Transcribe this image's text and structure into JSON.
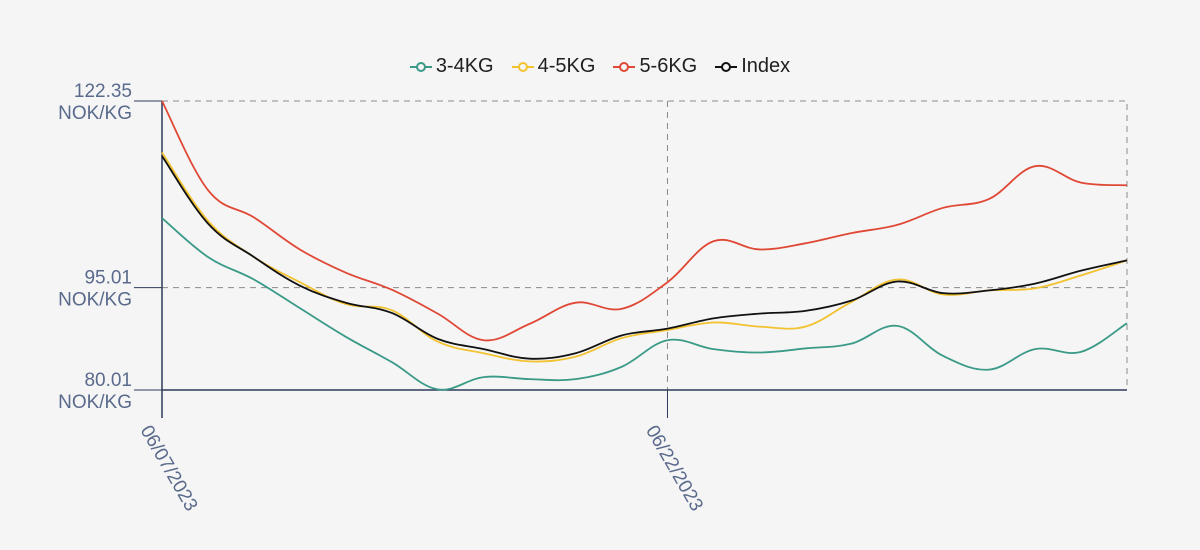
{
  "chart_data": {
    "type": "line",
    "title": "",
    "xlabel": "",
    "ylabel": "",
    "ylim": [
      80.01,
      122.35
    ],
    "y_ticks": [
      {
        "value": 122.35,
        "line1": "122.35",
        "line2": "NOK/KG"
      },
      {
        "value": 95.01,
        "line1": "95.01",
        "line2": "NOK/KG"
      },
      {
        "value": 80.01,
        "line1": "80.01",
        "line2": "NOK/KG"
      }
    ],
    "x_ticks": [
      {
        "index": 0,
        "label": "06/07/2023"
      },
      {
        "index": 11,
        "label": "06/22/2023"
      }
    ],
    "x_count": 22,
    "grid": true,
    "legend_position": "top-center",
    "series": [
      {
        "name": "3-4KG",
        "color": "#3a9a87",
        "values": [
          105.2,
          99.5,
          96.2,
          92.0,
          87.8,
          84.1,
          80.1,
          81.9,
          81.6,
          81.6,
          83.4,
          87.3,
          86.0,
          85.5,
          86.1,
          86.8,
          89.4,
          85.0,
          83.0,
          86.0,
          85.6,
          89.8
        ]
      },
      {
        "name": "4-5KG",
        "color": "#f2c230",
        "values": [
          114.8,
          104.8,
          99.5,
          95.8,
          92.6,
          91.7,
          87.1,
          85.4,
          84.2,
          84.9,
          87.6,
          88.8,
          89.9,
          89.3,
          89.3,
          92.9,
          96.2,
          94.0,
          94.6,
          94.9,
          96.8,
          99.0
        ]
      },
      {
        "name": "5-6KG",
        "color": "#e04836",
        "values": [
          122.35,
          109.3,
          105.3,
          100.6,
          97.2,
          94.7,
          91.2,
          87.3,
          89.7,
          92.8,
          91.9,
          95.8,
          101.8,
          100.6,
          101.5,
          103.0,
          104.2,
          106.7,
          108.0,
          112.8,
          110.4,
          110.0
        ]
      },
      {
        "name": "Index",
        "color": "#111111",
        "values": [
          114.3,
          104.4,
          99.5,
          95.3,
          92.8,
          91.3,
          87.5,
          86.0,
          84.6,
          85.4,
          88.0,
          89.0,
          90.5,
          91.2,
          91.6,
          93.1,
          95.9,
          94.2,
          94.6,
          95.6,
          97.5,
          99.0
        ]
      }
    ]
  }
}
